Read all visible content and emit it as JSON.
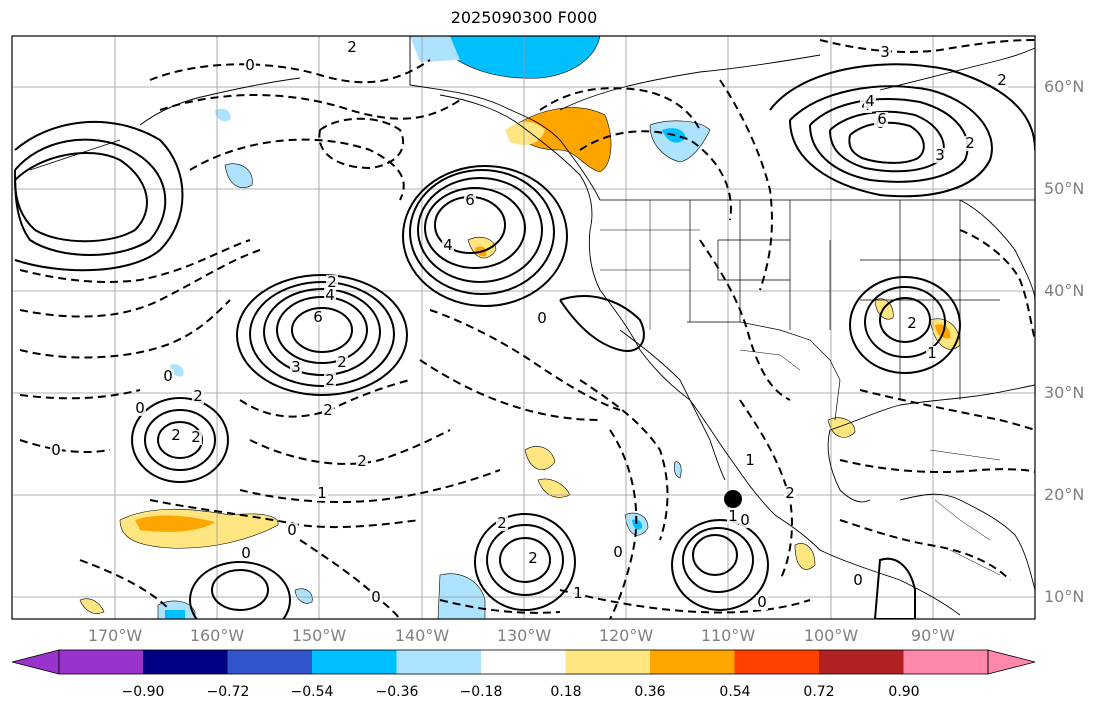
{
  "title": "2025090300 F000",
  "lat_labels": [
    "60°N",
    "50°N",
    "40°N",
    "30°N",
    "20°N",
    "10°N"
  ],
  "lon_labels": [
    "170°W",
    "160°W",
    "150°W",
    "140°W",
    "130°W",
    "120°W",
    "110°W",
    "100°W",
    "90°W"
  ],
  "colorbar": {
    "ticks": [
      "−0.90",
      "−0.72",
      "−0.54",
      "−0.36",
      "−0.18",
      "0.18",
      "0.36",
      "0.54",
      "0.72",
      "0.90"
    ],
    "colors": [
      "#9933cc",
      "#000080",
      "#3355cc",
      "#00bfff",
      "#aee3ff",
      "#ffffff",
      "#ffe680",
      "#ffa500",
      "#ff4000",
      "#b22222",
      "#ff88aa"
    ]
  },
  "contour_labels": [
    "2",
    "0",
    "3",
    "2",
    "6",
    "4",
    "6",
    "4",
    "2",
    "0",
    "2",
    "2",
    "4",
    "6",
    "3",
    "2",
    "0",
    "2",
    "0",
    "2",
    "2",
    "0",
    "2",
    "1",
    "0",
    "0",
    "2",
    "2",
    "0",
    "1",
    "0",
    "0",
    "1",
    "2",
    "0",
    "1",
    "4",
    "6",
    "1",
    "2",
    "3",
    "2",
    "0"
  ],
  "marker": "black-dot"
}
